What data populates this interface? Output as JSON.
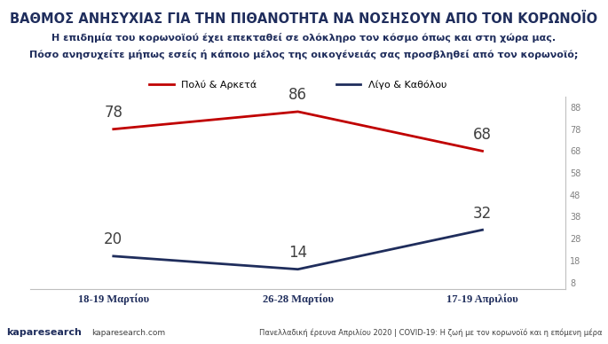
{
  "chart_data": {
    "type": "line",
    "title": "ΒΑΘΜΟΣ ΑΝΗΣΥΧΙΑΣ ΓΙΑ ΤΗΝ ΠΙΘΑΝΟΤΗΤΑ ΝΑ ΝΟΣΗΣΟΥΝ ΑΠΟ ΤΟΝ ΚΟΡΩΝΟΪΟ",
    "subtitle": [
      "Η επιδημία του κορωνοϊού έχει επεκταθεί σε ολόκληρο τον κόσμο όπως και στη χώρα μας.",
      "Πόσο ανησυχείτε μήπως εσείς ή κάποιο μέλος της οικογένειάς σας προσβληθεί από τον κορωνοϊό;"
    ],
    "categories": [
      "18-19 Μαρτίου",
      "26-28 Μαρτίου",
      "17-19 Απριλίου"
    ],
    "series": [
      {
        "name": "Πολύ & Αρκετά",
        "color": "#c00000",
        "values": [
          78,
          86,
          68
        ]
      },
      {
        "name": "Λίγο & Καθόλου",
        "color": "#1f2d5c",
        "values": [
          20,
          14,
          32
        ]
      }
    ],
    "ylim": [
      5,
      93
    ],
    "yticks": [
      8,
      18,
      28,
      38,
      48,
      58,
      68,
      78,
      88
    ],
    "grid": false,
    "legend": "upper center",
    "data_labels": true,
    "footer": [
      "kaparesearch",
      "kaparesearch.com",
      "Πανελλαδική έρευνα Απριλίου 2020 | COVID-19: Η ζωή με τον κορωνοϊό και η επόμενη μέρα"
    ]
  }
}
